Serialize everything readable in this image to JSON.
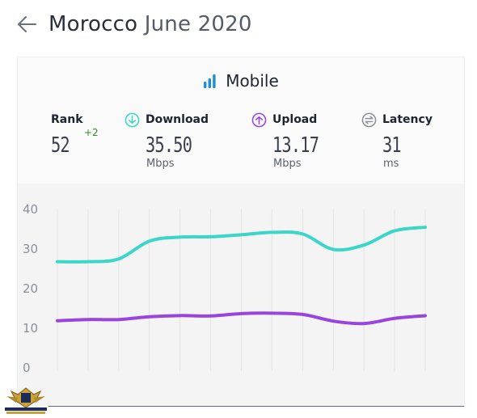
{
  "header": {
    "country": "Morocco",
    "period": "June 2020"
  },
  "card": {
    "title": "Mobile",
    "accent_color": "#1f8dd6"
  },
  "stats": {
    "rank": {
      "label": "Rank",
      "value": "52",
      "change": "+2"
    },
    "download": {
      "label": "Download",
      "value": "35.50",
      "unit": "Mbps",
      "color": "#3ad6c8"
    },
    "upload": {
      "label": "Upload",
      "value": "13.17",
      "unit": "Mbps",
      "color": "#9a44e0"
    },
    "latency": {
      "label": "Latency",
      "value": "31",
      "unit": "ms",
      "color": "#8a8f99"
    }
  },
  "chart_data": {
    "type": "line",
    "x": [
      1,
      2,
      3,
      4,
      5,
      6,
      7,
      8,
      9,
      10,
      11,
      12,
      13
    ],
    "ylim": [
      0,
      40
    ],
    "yticks": [
      "0",
      "10",
      "20",
      "30",
      "40"
    ],
    "grid": true,
    "series": [
      {
        "name": "Download",
        "color": "#3ad6c8",
        "values": [
          26.8,
          26.8,
          27.5,
          32.0,
          33.0,
          33.1,
          33.6,
          34.2,
          33.8,
          29.9,
          31.0,
          34.6,
          35.5
        ]
      },
      {
        "name": "Upload",
        "color": "#9a44e0",
        "values": [
          11.9,
          12.2,
          12.2,
          12.9,
          13.2,
          13.1,
          13.7,
          13.8,
          13.5,
          11.8,
          11.2,
          12.5,
          13.17
        ]
      }
    ]
  }
}
